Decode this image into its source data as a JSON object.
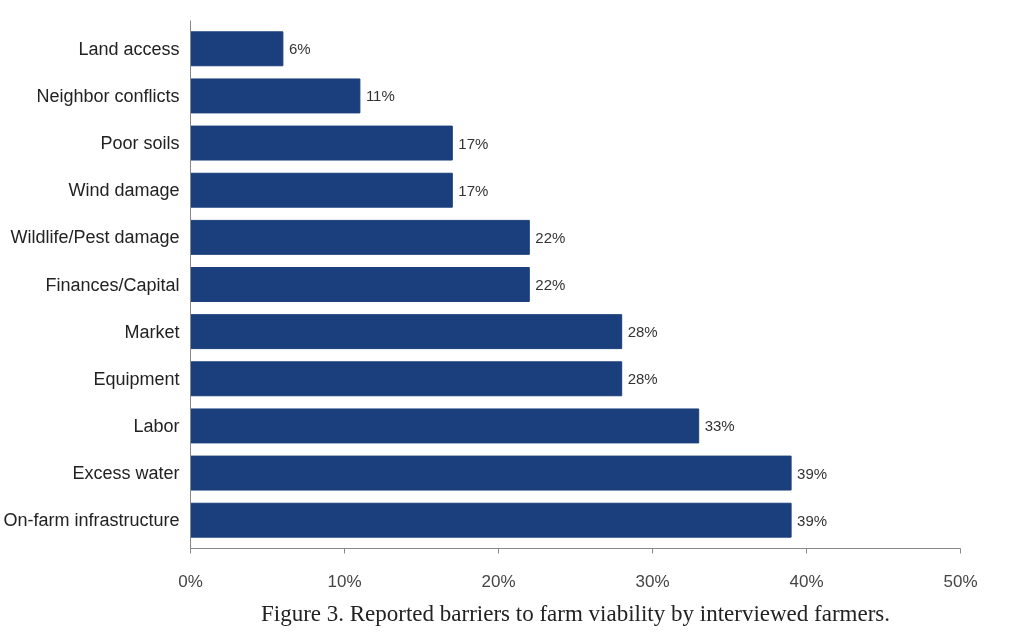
{
  "chart_data": {
    "type": "bar",
    "orientation": "horizontal",
    "categories": [
      "Land access",
      "Neighbor conflicts",
      "Poor soils",
      "Wind damage",
      "Wildlife/Pest damage",
      "Finances/Capital",
      "Market",
      "Equipment",
      "Labor",
      "Excess water",
      "On-farm infrastructure"
    ],
    "values": [
      6,
      11,
      17,
      17,
      22,
      22,
      28,
      28,
      33,
      39,
      39
    ],
    "value_labels": [
      "6%",
      "11%",
      "17%",
      "17%",
      "22%",
      "22%",
      "28%",
      "28%",
      "33%",
      "39%",
      "39%"
    ],
    "color": "#1b3f7c",
    "xlim": [
      0,
      50
    ],
    "xticks": [
      {
        "value": 0,
        "label": "0%"
      },
      {
        "value": 10,
        "label": "10%"
      },
      {
        "value": 20,
        "label": "20%"
      },
      {
        "value": 30,
        "label": "30%"
      },
      {
        "value": 40,
        "label": "40%"
      },
      {
        "value": 50,
        "label": "50%"
      }
    ],
    "grid": false,
    "annotations": [
      "Figure 3. Reported barriers to farm viability by interviewed farmers."
    ]
  }
}
